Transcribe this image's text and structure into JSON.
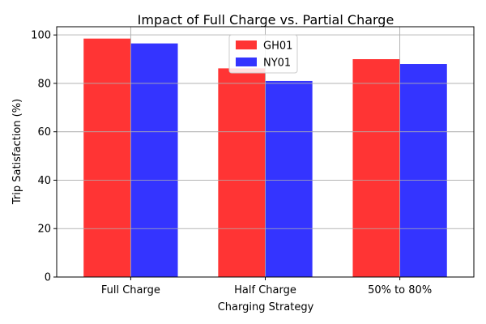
{
  "chart_data": {
    "type": "bar",
    "title": "Impact of Full Charge vs. Partial Charge",
    "xlabel": "Charging Strategy",
    "ylabel": "Trip Satisfaction (%)",
    "categories": [
      "Full Charge",
      "Half Charge",
      "50% to 80%"
    ],
    "series": [
      {
        "name": "GH01",
        "values": [
          98.5,
          86.2,
          90.0
        ],
        "color": "#ff3434"
      },
      {
        "name": "NY01",
        "values": [
          96.5,
          81.0,
          88.0
        ],
        "color": "#3434ff"
      }
    ],
    "ylim": [
      0,
      103.4
    ],
    "yticks": [
      0,
      20,
      40,
      60,
      80,
      100
    ],
    "grid": true,
    "legend_position": "top-center"
  }
}
